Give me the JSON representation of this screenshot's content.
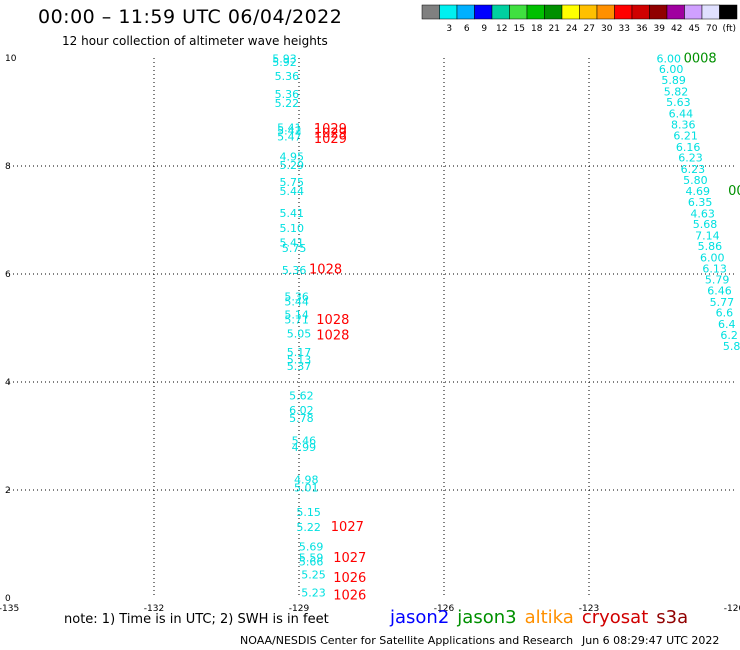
{
  "header": {
    "title": "00:00 – 11:59 UTC 06/04/2022",
    "subtitle": "12 hour collection of altimeter wave heights"
  },
  "colorbar": {
    "bins": [
      {
        "color": "#808080",
        "label": ""
      },
      {
        "color": "#00f0f0",
        "label": "3"
      },
      {
        "color": "#00b0ff",
        "label": "6"
      },
      {
        "color": "#0000ff",
        "label": "9"
      },
      {
        "color": "#00d0a0",
        "label": "12"
      },
      {
        "color": "#40e040",
        "label": "15"
      },
      {
        "color": "#00c000",
        "label": "18"
      },
      {
        "color": "#009000",
        "label": "21"
      },
      {
        "color": "#ffff00",
        "label": "24"
      },
      {
        "color": "#ffc000",
        "label": "27"
      },
      {
        "color": "#ff9000",
        "label": "30"
      },
      {
        "color": "#ff0000",
        "label": "33"
      },
      {
        "color": "#d00000",
        "label": "36"
      },
      {
        "color": "#900000",
        "label": "39"
      },
      {
        "color": "#a000a0",
        "label": "42"
      },
      {
        "color": "#d0a0ff",
        "label": "45"
      },
      {
        "color": "#e0e0ff",
        "label": "70"
      },
      {
        "color": "#000000",
        "label": "(ft)"
      }
    ]
  },
  "footer": {
    "note": "note: 1) Time is in UTC; 2) SWH is in feet",
    "satellites": [
      {
        "name": "jason2",
        "color": "#0000ff"
      },
      {
        "name": "jason3",
        "color": "#009000"
      },
      {
        "name": "altika",
        "color": "#ff9000"
      },
      {
        "name": "cryosat",
        "color": "#d00000"
      },
      {
        "name": "s3a",
        "color": "#900000"
      }
    ],
    "credit": "NOAA/NESDIS Center for Satellite Applications and Research",
    "generated": "Jun  6 08:29:47 UTC 2022"
  },
  "chart_data": {
    "type": "scatter",
    "xlim": [
      -135,
      -120
    ],
    "ylim": [
      0,
      10
    ],
    "xticks": [
      "-135",
      "-132",
      "-129",
      "-126",
      "-123",
      "-120"
    ],
    "yticks": [
      "0",
      "2",
      "4",
      "6",
      "8",
      "10"
    ],
    "grid": true,
    "value_labels": [
      {
        "x": -129.3,
        "y": 9.92,
        "text": "5.93",
        "color": "#00e0e0"
      },
      {
        "x": -129.3,
        "y": 9.85,
        "text": "5.92",
        "color": "#00e0e0"
      },
      {
        "x": -129.25,
        "y": 9.59,
        "text": "5.36",
        "color": "#00e0e0"
      },
      {
        "x": -129.25,
        "y": 9.26,
        "text": "5.36",
        "color": "#00e0e0"
      },
      {
        "x": -129.25,
        "y": 9.09,
        "text": "5.22",
        "color": "#00e0e0"
      },
      {
        "x": -129.2,
        "y": 8.64,
        "text": "5.41",
        "color": "#00e0e0"
      },
      {
        "x": -129.2,
        "y": 8.58,
        "text": "5.42",
        "color": "#00e0e0"
      },
      {
        "x": -129.2,
        "y": 8.47,
        "text": "5.47",
        "color": "#00e0e0"
      },
      {
        "x": -129.15,
        "y": 8.1,
        "text": "4.95",
        "color": "#00e0e0"
      },
      {
        "x": -129.15,
        "y": 7.94,
        "text": "5.29",
        "color": "#00e0e0"
      },
      {
        "x": -129.15,
        "y": 7.63,
        "text": "5.75",
        "color": "#00e0e0"
      },
      {
        "x": -129.15,
        "y": 7.46,
        "text": "5.44",
        "color": "#00e0e0"
      },
      {
        "x": -129.15,
        "y": 7.06,
        "text": "5.41",
        "color": "#00e0e0"
      },
      {
        "x": -129.15,
        "y": 6.78,
        "text": "5.10",
        "color": "#00e0e0"
      },
      {
        "x": -129.15,
        "y": 6.51,
        "text": "5.41",
        "color": "#00e0e0"
      },
      {
        "x": -129.1,
        "y": 6.41,
        "text": "5.75",
        "color": "#00e0e0"
      },
      {
        "x": -129.1,
        "y": 6.0,
        "text": "5.36",
        "color": "#00e0e0"
      },
      {
        "x": -129.05,
        "y": 5.51,
        "text": "5.36",
        "color": "#00e0e0"
      },
      {
        "x": -129.05,
        "y": 5.42,
        "text": "5.44",
        "color": "#00e0e0"
      },
      {
        "x": -129.05,
        "y": 5.18,
        "text": "5.14",
        "color": "#00e0e0"
      },
      {
        "x": -129.05,
        "y": 5.08,
        "text": "5.71",
        "color": "#00e0e0"
      },
      {
        "x": -129.0,
        "y": 4.82,
        "text": "5.05",
        "color": "#00e0e0"
      },
      {
        "x": -129.0,
        "y": 4.48,
        "text": "5.17",
        "color": "#00e0e0"
      },
      {
        "x": -129.0,
        "y": 4.34,
        "text": "5.13",
        "color": "#00e0e0"
      },
      {
        "x": -129.0,
        "y": 4.22,
        "text": "5.37",
        "color": "#00e0e0"
      },
      {
        "x": -128.95,
        "y": 3.68,
        "text": "5.62",
        "color": "#00e0e0"
      },
      {
        "x": -128.95,
        "y": 3.41,
        "text": "6.02",
        "color": "#00e0e0"
      },
      {
        "x": -128.95,
        "y": 3.26,
        "text": "5.78",
        "color": "#00e0e0"
      },
      {
        "x": -128.9,
        "y": 2.84,
        "text": "5.46",
        "color": "#00e0e0"
      },
      {
        "x": -128.9,
        "y": 2.72,
        "text": "4.99",
        "color": "#00e0e0"
      },
      {
        "x": -128.85,
        "y": 2.12,
        "text": "4.98",
        "color": "#00e0e0"
      },
      {
        "x": -128.85,
        "y": 1.97,
        "text": "5.01",
        "color": "#00e0e0"
      },
      {
        "x": -128.8,
        "y": 1.52,
        "text": "5.15",
        "color": "#00e0e0"
      },
      {
        "x": -128.8,
        "y": 1.24,
        "text": "5.22",
        "color": "#00e0e0"
      },
      {
        "x": -128.75,
        "y": 0.88,
        "text": "5.69",
        "color": "#00e0e0"
      },
      {
        "x": -128.75,
        "y": 0.68,
        "text": "5.59",
        "color": "#00e0e0"
      },
      {
        "x": -128.75,
        "y": 0.6,
        "text": "5.66",
        "color": "#00e0e0"
      },
      {
        "x": -128.7,
        "y": 0.36,
        "text": "5.25",
        "color": "#00e0e0"
      },
      {
        "x": -128.7,
        "y": 0.03,
        "text": "5.23",
        "color": "#00e0e0"
      },
      {
        "x": -128.35,
        "y": 8.61,
        "text": "1029",
        "color": "#ff0000"
      },
      {
        "x": -128.35,
        "y": 8.53,
        "text": "1029",
        "color": "#ff0000"
      },
      {
        "x": -128.35,
        "y": 8.43,
        "text": "1029",
        "color": "#ff0000"
      },
      {
        "x": -128.45,
        "y": 6.01,
        "text": "1028",
        "color": "#ff0000"
      },
      {
        "x": -128.3,
        "y": 5.07,
        "text": "1028",
        "color": "#ff0000"
      },
      {
        "x": -128.3,
        "y": 4.79,
        "text": "1028",
        "color": "#ff0000"
      },
      {
        "x": -128.0,
        "y": 1.24,
        "text": "1027",
        "color": "#ff0000"
      },
      {
        "x": -127.95,
        "y": 0.67,
        "text": "1027",
        "color": "#ff0000"
      },
      {
        "x": -127.95,
        "y": 0.3,
        "text": "1026",
        "color": "#ff0000"
      },
      {
        "x": -127.95,
        "y": -0.03,
        "text": "1026",
        "color": "#ff0000"
      },
      {
        "x": -121.35,
        "y": 9.92,
        "text": "6.00",
        "color": "#00e0e0"
      },
      {
        "x": -121.3,
        "y": 9.72,
        "text": "6.00",
        "color": "#00e0e0"
      },
      {
        "x": -121.25,
        "y": 9.52,
        "text": "5.89",
        "color": "#00e0e0"
      },
      {
        "x": -121.2,
        "y": 9.31,
        "text": "5.82",
        "color": "#00e0e0"
      },
      {
        "x": -121.15,
        "y": 9.11,
        "text": "5.63",
        "color": "#00e0e0"
      },
      {
        "x": -121.1,
        "y": 8.9,
        "text": "6.44",
        "color": "#00e0e0"
      },
      {
        "x": -121.05,
        "y": 8.69,
        "text": "8.36",
        "color": "#00e0e0"
      },
      {
        "x": -121.0,
        "y": 8.49,
        "text": "6.21",
        "color": "#00e0e0"
      },
      {
        "x": -120.95,
        "y": 8.28,
        "text": "6.16",
        "color": "#00e0e0"
      },
      {
        "x": -120.9,
        "y": 8.08,
        "text": "6.23",
        "color": "#00e0e0"
      },
      {
        "x": -120.85,
        "y": 7.87,
        "text": "6.23",
        "color": "#00e0e0"
      },
      {
        "x": -120.8,
        "y": 7.67,
        "text": "5.80",
        "color": "#00e0e0"
      },
      {
        "x": -120.75,
        "y": 7.46,
        "text": "4.69",
        "color": "#00e0e0"
      },
      {
        "x": -120.7,
        "y": 7.26,
        "text": "6.35",
        "color": "#00e0e0"
      },
      {
        "x": -120.65,
        "y": 7.05,
        "text": "4.63",
        "color": "#00e0e0"
      },
      {
        "x": -120.6,
        "y": 6.85,
        "text": "5.68",
        "color": "#00e0e0"
      },
      {
        "x": -120.55,
        "y": 6.64,
        "text": "7.14",
        "color": "#00e0e0"
      },
      {
        "x": -120.5,
        "y": 6.44,
        "text": "5.86",
        "color": "#00e0e0"
      },
      {
        "x": -120.45,
        "y": 6.23,
        "text": "6.00",
        "color": "#00e0e0"
      },
      {
        "x": -120.4,
        "y": 6.03,
        "text": "6.13",
        "color": "#00e0e0"
      },
      {
        "x": -120.35,
        "y": 5.82,
        "text": "5.79",
        "color": "#00e0e0"
      },
      {
        "x": -120.3,
        "y": 5.62,
        "text": "6.46",
        "color": "#00e0e0"
      },
      {
        "x": -120.25,
        "y": 5.41,
        "text": "5.77",
        "color": "#00e0e0"
      },
      {
        "x": -120.2,
        "y": 5.21,
        "text": "6.6",
        "color": "#00e0e0"
      },
      {
        "x": -120.15,
        "y": 5.0,
        "text": "6.4",
        "color": "#00e0e0"
      },
      {
        "x": -120.1,
        "y": 4.8,
        "text": "6.2",
        "color": "#00e0e0"
      },
      {
        "x": -120.05,
        "y": 4.59,
        "text": "5.8",
        "color": "#00e0e0"
      },
      {
        "x": -120.7,
        "y": 9.92,
        "text": "0008",
        "color": "#009000"
      },
      {
        "x": -119.95,
        "y": 7.46,
        "text": "00",
        "color": "#009000"
      }
    ]
  }
}
